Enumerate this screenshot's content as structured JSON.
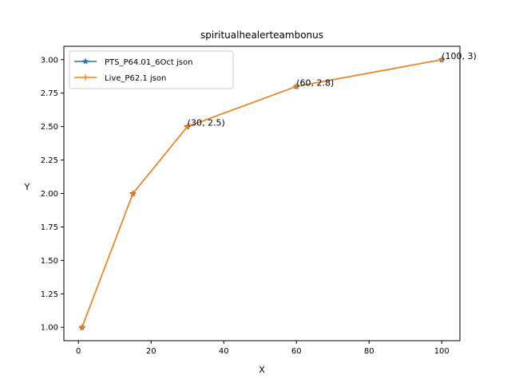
{
  "chart_data": {
    "type": "line",
    "title": "spiritualhealerteambonus",
    "xlabel": "X",
    "ylabel": "Y",
    "xlim": [
      -4,
      105
    ],
    "ylim": [
      0.9,
      3.1
    ],
    "xticks": [
      0,
      20,
      40,
      60,
      80,
      100
    ],
    "xtick_labels": [
      "0",
      "20",
      "40",
      "60",
      "80",
      "100"
    ],
    "yticks": [
      1.0,
      1.25,
      1.5,
      1.75,
      2.0,
      2.25,
      2.5,
      2.75,
      3.0
    ],
    "ytick_labels": [
      "1.00",
      "1.25",
      "1.50",
      "1.75",
      "2.00",
      "2.25",
      "2.50",
      "2.75",
      "3.00"
    ],
    "grid": false,
    "legend_position": "top-left",
    "series": [
      {
        "name": "PTS_P64.01_6Oct json",
        "color": "#1f77b4",
        "marker": "star",
        "x": [
          1,
          15,
          30,
          60,
          100
        ],
        "y": [
          1,
          2,
          2.5,
          2.8,
          3
        ]
      },
      {
        "name": "Live_P62.1 json",
        "color": "#ff7f0e",
        "marker": "plus",
        "x": [
          1,
          15,
          30,
          60,
          100
        ],
        "y": [
          1,
          2,
          2.5,
          2.8,
          3
        ]
      }
    ],
    "annotations": [
      {
        "text": "(30, 2.5)",
        "x": 30,
        "y": 2.5
      },
      {
        "text": "(60, 2.8)",
        "x": 60,
        "y": 2.8
      },
      {
        "text": "(100, 3)",
        "x": 100,
        "y": 3
      }
    ]
  }
}
